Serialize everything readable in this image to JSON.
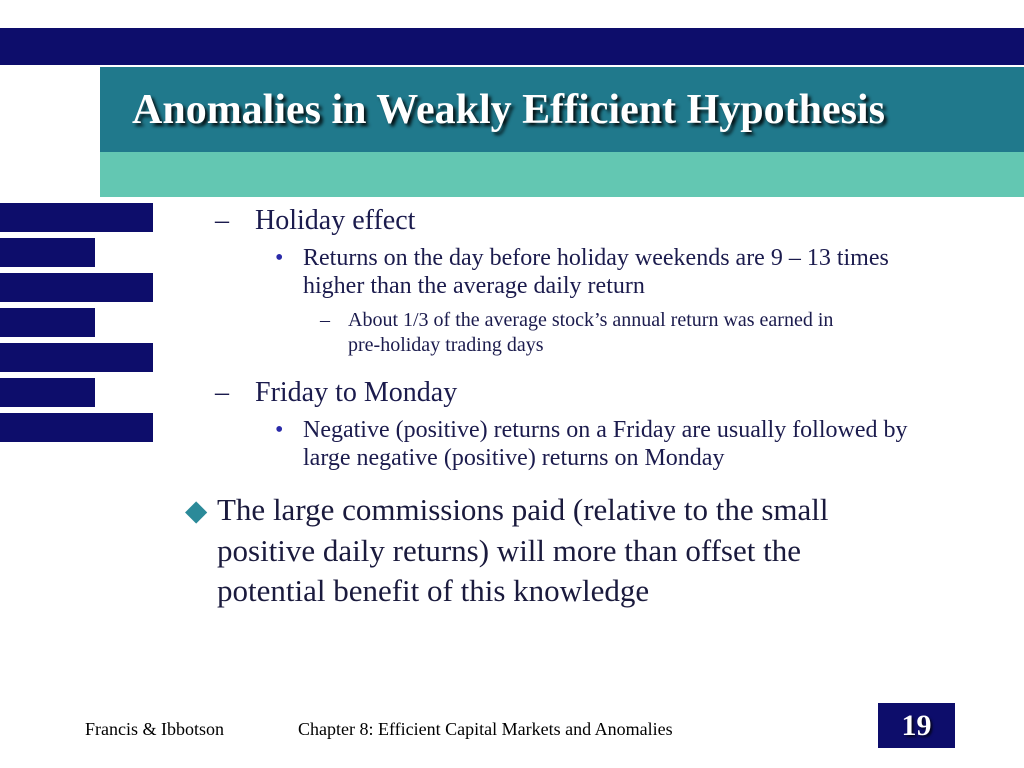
{
  "slide": {
    "title": "Anomalies in Weakly Efficient Hypothesis",
    "content": {
      "items": [
        {
          "marker": "–",
          "text": "Holiday effect"
        },
        {
          "marker": "•",
          "text": "Returns on the day before holiday weekends are 9 – 13 times higher than the average daily return"
        },
        {
          "marker": "–",
          "text": "About 1/3 of the average stock’s annual return was earned in pre-holiday trading days"
        },
        {
          "marker": "–",
          "text": "Friday to Monday"
        },
        {
          "marker": "•",
          "text": "Negative (positive) returns on a Friday are usually followed by large negative (positive) returns on Monday"
        },
        {
          "marker": "◆",
          "text": "The large commissions paid (relative to the small positive daily returns) will more than offset the potential benefit of this knowledge"
        }
      ]
    },
    "footer": {
      "authors": "Francis & Ibbotson",
      "chapter": "Chapter 8:  Efficient Capital Markets and Anomalies",
      "page_number": "19"
    },
    "colors": {
      "navy": "#0d0d6b",
      "dark_teal": "#20798c",
      "light_teal": "#63c7b2",
      "diamond_teal": "#2b8a99",
      "title_text": "#ffffff",
      "body_text": "#1b1b4d"
    }
  }
}
